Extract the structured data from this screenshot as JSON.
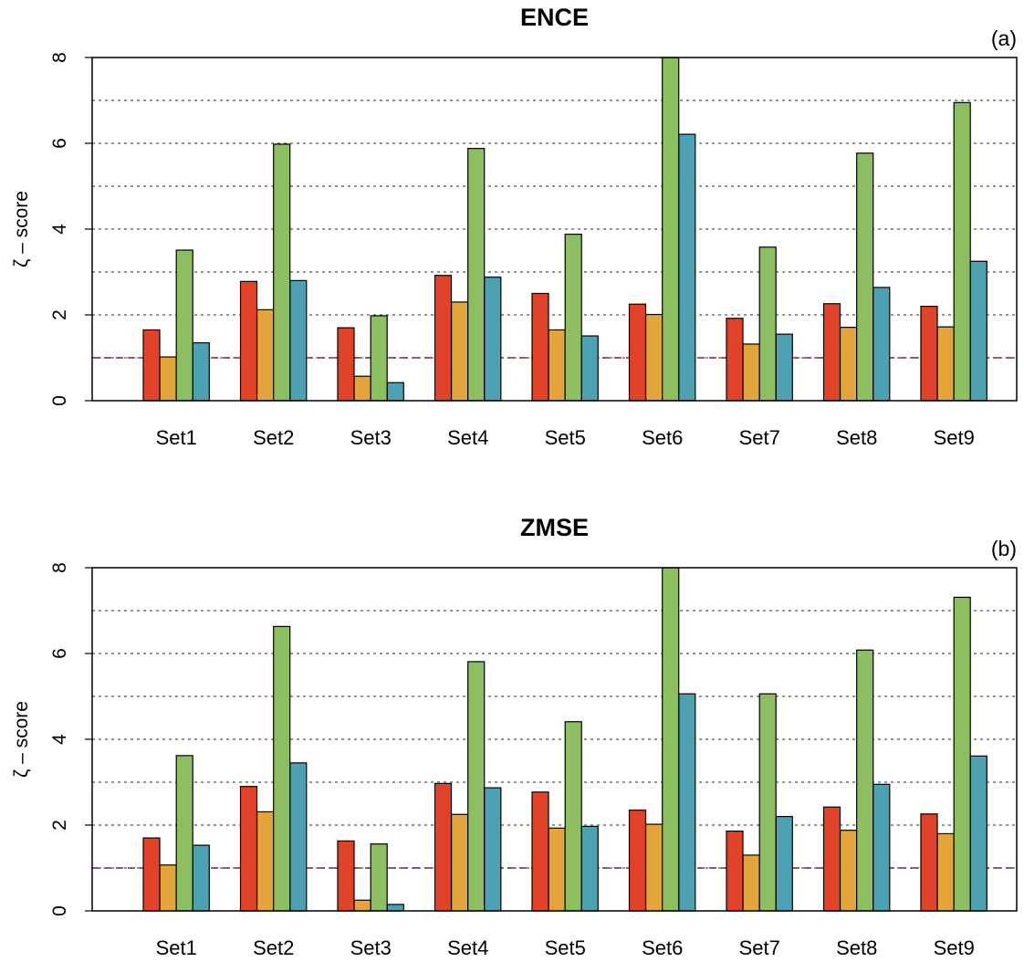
{
  "colors": [
    "#e04328",
    "#e3a43b",
    "#8dbf62",
    "#4ea1b3"
  ],
  "ref_line_color": "#7a2a2a",
  "grid_color": "#555555",
  "chart_data": [
    {
      "type": "bar",
      "title": "ENCE",
      "panel_label": "(a)",
      "ylabel": "ζ – score",
      "ylim": [
        0,
        8
      ],
      "yticks": [
        0,
        2,
        4,
        6,
        8
      ],
      "gridlines": [
        1,
        2,
        3,
        4,
        5,
        6,
        7
      ],
      "reference_line": 1,
      "categories": [
        "Set1",
        "Set2",
        "Set3",
        "Set4",
        "Set5",
        "Set6",
        "Set7",
        "Set8",
        "Set9"
      ],
      "series": [
        {
          "values": [
            1.65,
            2.78,
            1.7,
            2.92,
            2.5,
            2.25,
            1.92,
            2.26,
            2.2
          ]
        },
        {
          "values": [
            1.02,
            2.12,
            0.57,
            2.3,
            1.65,
            2.01,
            1.32,
            1.71,
            1.72
          ]
        },
        {
          "values": [
            3.51,
            5.98,
            1.98,
            5.88,
            3.88,
            8.0,
            3.58,
            5.77,
            6.95
          ]
        },
        {
          "values": [
            1.35,
            2.8,
            0.42,
            2.88,
            1.51,
            6.21,
            1.55,
            2.64,
            3.25
          ]
        }
      ]
    },
    {
      "type": "bar",
      "title": "ZMSE",
      "panel_label": "(b)",
      "ylabel": "ζ – score",
      "ylim": [
        0,
        8
      ],
      "yticks": [
        0,
        2,
        4,
        6,
        8
      ],
      "gridlines": [
        1,
        2,
        3,
        4,
        5,
        6,
        7
      ],
      "reference_line": 1,
      "categories": [
        "Set1",
        "Set2",
        "Set3",
        "Set4",
        "Set5",
        "Set6",
        "Set7",
        "Set8",
        "Set9"
      ],
      "series": [
        {
          "values": [
            1.7,
            2.9,
            1.63,
            2.97,
            2.77,
            2.35,
            1.86,
            2.42,
            2.26
          ]
        },
        {
          "values": [
            1.07,
            2.31,
            0.25,
            2.25,
            1.93,
            2.02,
            1.3,
            1.88,
            1.8
          ]
        },
        {
          "values": [
            3.62,
            6.63,
            1.56,
            5.81,
            4.41,
            8.0,
            5.06,
            6.08,
            7.31
          ]
        },
        {
          "values": [
            1.53,
            3.45,
            0.15,
            2.87,
            1.97,
            5.06,
            2.2,
            2.95,
            3.61
          ]
        }
      ]
    }
  ]
}
